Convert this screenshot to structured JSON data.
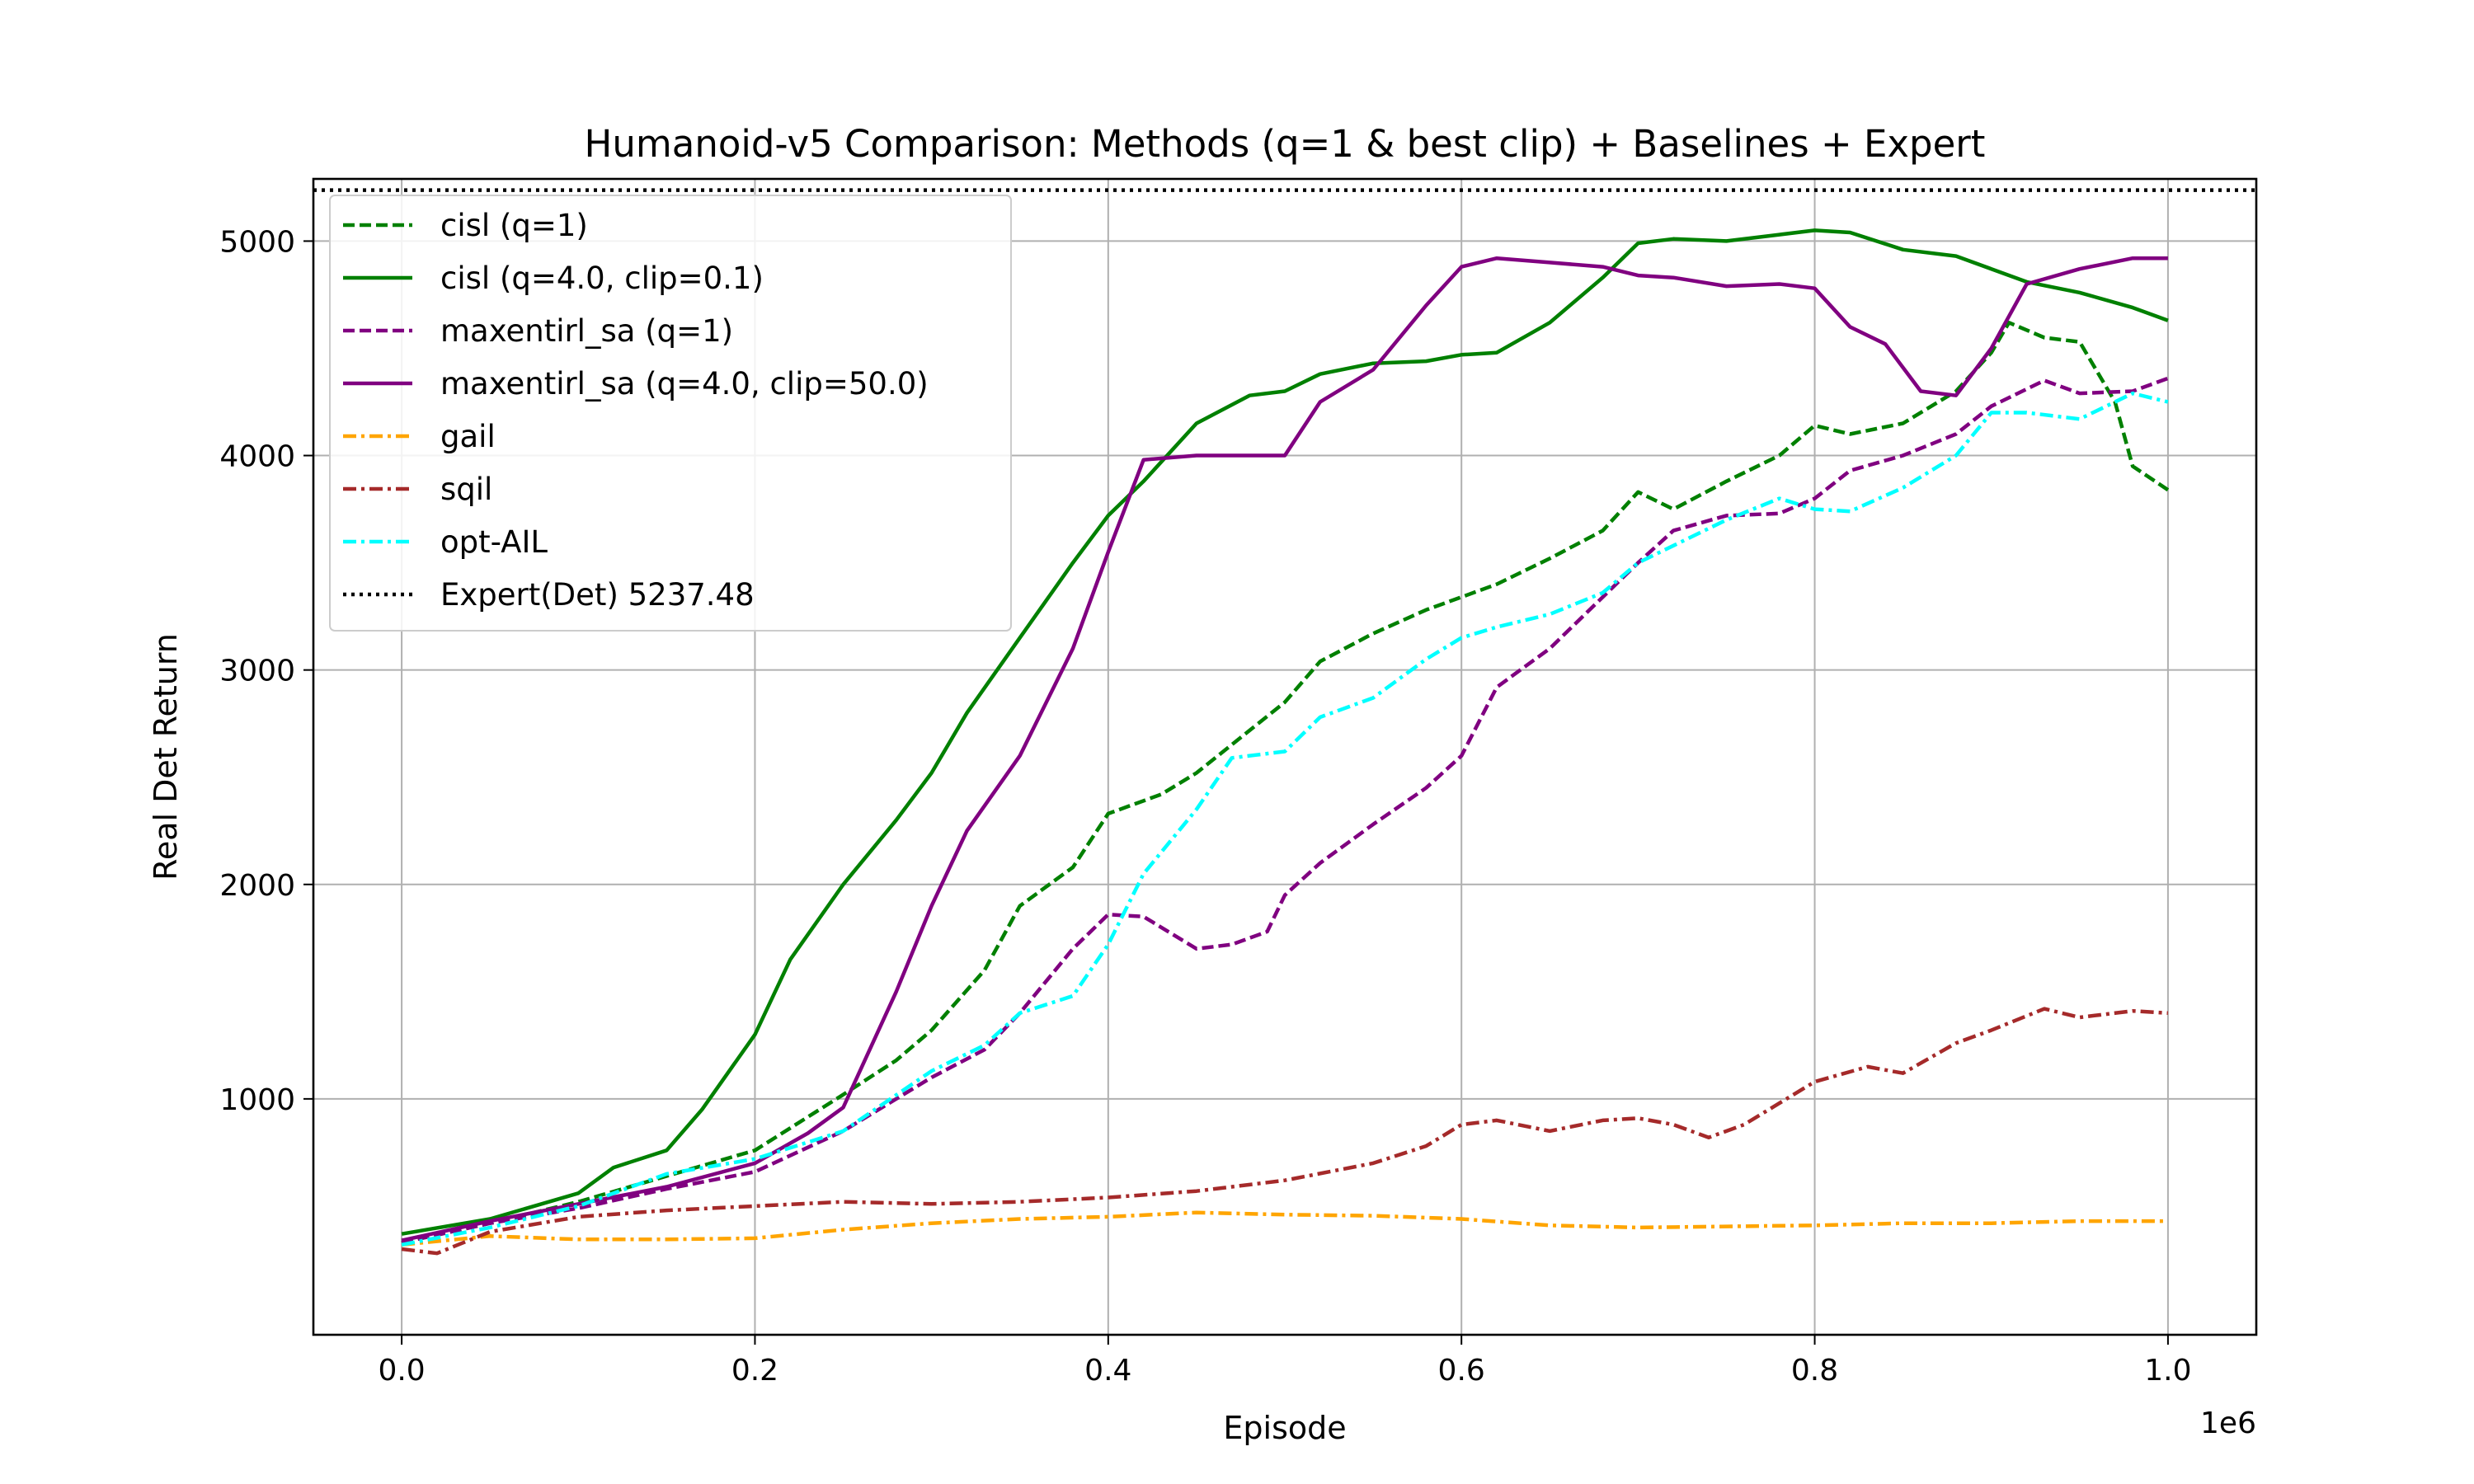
{
  "chart_data": {
    "type": "line",
    "title": "Humanoid-v5 Comparison: Methods (q=1 & best clip) + Baselines + Expert",
    "xlabel": "Episode",
    "ylabel": "Real Det Return",
    "x_offset_label": "1e6",
    "xlim": [
      -0.05,
      1.05
    ],
    "ylim": [
      -100,
      5290
    ],
    "xticks": [
      0.0,
      0.2,
      0.4,
      0.6,
      0.8,
      1.0
    ],
    "xtick_labels": [
      "0.0",
      "0.2",
      "0.4",
      "0.6",
      "0.8",
      "1.0"
    ],
    "yticks": [
      1000,
      2000,
      3000,
      4000,
      5000
    ],
    "ytick_labels": [
      "1000",
      "2000",
      "3000",
      "4000",
      "5000"
    ],
    "grid": true,
    "legend_position": "top-left",
    "reference_line": {
      "name": "Expert(Det) 5237.48",
      "value": 5237.48,
      "color": "#000000",
      "style": "dotted"
    },
    "series": [
      {
        "name": "cisl (q=1)",
        "color": "#008000",
        "style": "dashed",
        "x": [
          0.0,
          0.05,
          0.1,
          0.15,
          0.2,
          0.25,
          0.28,
          0.3,
          0.33,
          0.35,
          0.38,
          0.4,
          0.43,
          0.45,
          0.5,
          0.52,
          0.55,
          0.58,
          0.6,
          0.62,
          0.65,
          0.68,
          0.7,
          0.72,
          0.75,
          0.78,
          0.8,
          0.82,
          0.85,
          0.88,
          0.9,
          0.91,
          0.93,
          0.95,
          0.97,
          0.98,
          1.0
        ],
        "y": [
          330,
          420,
          520,
          640,
          760,
          1020,
          1180,
          1320,
          1600,
          1900,
          2080,
          2330,
          2420,
          2520,
          2850,
          3040,
          3170,
          3280,
          3340,
          3400,
          3520,
          3650,
          3830,
          3750,
          3880,
          4000,
          4140,
          4100,
          4150,
          4300,
          4480,
          4620,
          4550,
          4530,
          4250,
          3950,
          3840
        ]
      },
      {
        "name": "cisl (q=4.0, clip=0.1)",
        "color": "#008000",
        "style": "solid",
        "x": [
          0.0,
          0.05,
          0.1,
          0.12,
          0.15,
          0.17,
          0.2,
          0.22,
          0.25,
          0.28,
          0.3,
          0.32,
          0.35,
          0.38,
          0.4,
          0.42,
          0.45,
          0.48,
          0.5,
          0.52,
          0.55,
          0.58,
          0.6,
          0.62,
          0.65,
          0.68,
          0.7,
          0.72,
          0.75,
          0.78,
          0.8,
          0.82,
          0.85,
          0.88,
          0.9,
          0.92,
          0.95,
          0.98,
          1.0
        ],
        "y": [
          370,
          440,
          560,
          680,
          760,
          950,
          1300,
          1650,
          2000,
          2300,
          2520,
          2800,
          3150,
          3500,
          3720,
          3880,
          4150,
          4280,
          4300,
          4380,
          4430,
          4440,
          4470,
          4480,
          4620,
          4830,
          4990,
          5010,
          5000,
          5030,
          5050,
          5040,
          4960,
          4930,
          4870,
          4810,
          4760,
          4690,
          4630
        ]
      },
      {
        "name": "maxentirl_sa (q=1)",
        "color": "#800080",
        "style": "dashed",
        "x": [
          0.0,
          0.05,
          0.1,
          0.15,
          0.2,
          0.25,
          0.3,
          0.33,
          0.35,
          0.38,
          0.4,
          0.42,
          0.45,
          0.47,
          0.49,
          0.5,
          0.52,
          0.55,
          0.58,
          0.6,
          0.62,
          0.65,
          0.68,
          0.7,
          0.72,
          0.75,
          0.78,
          0.8,
          0.82,
          0.85,
          0.88,
          0.9,
          0.92,
          0.93,
          0.95,
          0.98,
          1.0
        ],
        "y": [
          330,
          420,
          490,
          580,
          660,
          850,
          1100,
          1230,
          1400,
          1700,
          1860,
          1850,
          1700,
          1720,
          1780,
          1950,
          2100,
          2280,
          2450,
          2600,
          2920,
          3100,
          3340,
          3500,
          3650,
          3720,
          3730,
          3800,
          3930,
          4000,
          4100,
          4230,
          4310,
          4350,
          4290,
          4300,
          4360
        ]
      },
      {
        "name": "maxentirl_sa (q=4.0, clip=50.0)",
        "color": "#800080",
        "style": "solid",
        "x": [
          0.0,
          0.05,
          0.1,
          0.15,
          0.2,
          0.23,
          0.25,
          0.28,
          0.3,
          0.32,
          0.35,
          0.38,
          0.4,
          0.42,
          0.45,
          0.48,
          0.5,
          0.52,
          0.55,
          0.58,
          0.6,
          0.62,
          0.65,
          0.68,
          0.7,
          0.72,
          0.75,
          0.78,
          0.8,
          0.82,
          0.84,
          0.86,
          0.88,
          0.9,
          0.92,
          0.95,
          0.98,
          1.0
        ],
        "y": [
          340,
          430,
          510,
          590,
          700,
          840,
          960,
          1500,
          1900,
          2250,
          2600,
          3100,
          3550,
          3980,
          4000,
          4000,
          4000,
          4250,
          4400,
          4700,
          4880,
          4920,
          4900,
          4880,
          4840,
          4830,
          4790,
          4800,
          4780,
          4600,
          4520,
          4300,
          4280,
          4500,
          4800,
          4870,
          4920,
          4920
        ]
      },
      {
        "name": "gail",
        "color": "#FFA500",
        "style": "dashdot",
        "x": [
          0.0,
          0.05,
          0.1,
          0.15,
          0.2,
          0.25,
          0.3,
          0.35,
          0.4,
          0.45,
          0.5,
          0.55,
          0.6,
          0.65,
          0.7,
          0.75,
          0.8,
          0.85,
          0.9,
          0.95,
          1.0
        ],
        "y": [
          320,
          360,
          345,
          345,
          350,
          390,
          420,
          440,
          450,
          470,
          460,
          455,
          440,
          410,
          400,
          405,
          410,
          420,
          420,
          430,
          430
        ]
      },
      {
        "name": "sqil",
        "color": "#A52A2A",
        "style": "dashdot",
        "x": [
          0.0,
          0.02,
          0.05,
          0.1,
          0.15,
          0.2,
          0.25,
          0.3,
          0.35,
          0.4,
          0.45,
          0.5,
          0.55,
          0.58,
          0.6,
          0.62,
          0.65,
          0.68,
          0.7,
          0.72,
          0.74,
          0.76,
          0.78,
          0.8,
          0.83,
          0.85,
          0.88,
          0.9,
          0.93,
          0.95,
          0.98,
          1.0
        ],
        "y": [
          300,
          280,
          380,
          450,
          480,
          500,
          520,
          510,
          520,
          540,
          570,
          620,
          700,
          780,
          880,
          900,
          850,
          900,
          910,
          880,
          820,
          880,
          980,
          1080,
          1150,
          1120,
          1260,
          1320,
          1420,
          1380,
          1410,
          1400
        ]
      },
      {
        "name": "opt-AIL",
        "color": "#00FFFF",
        "style": "dashdot",
        "x": [
          0.0,
          0.05,
          0.1,
          0.15,
          0.2,
          0.25,
          0.3,
          0.33,
          0.35,
          0.38,
          0.4,
          0.42,
          0.45,
          0.47,
          0.5,
          0.52,
          0.55,
          0.58,
          0.6,
          0.62,
          0.65,
          0.68,
          0.7,
          0.72,
          0.75,
          0.78,
          0.8,
          0.82,
          0.85,
          0.88,
          0.9,
          0.92,
          0.95,
          0.98,
          1.0
        ],
        "y": [
          320,
          400,
          500,
          650,
          720,
          850,
          1130,
          1250,
          1400,
          1480,
          1720,
          2050,
          2350,
          2590,
          2620,
          2780,
          2870,
          3050,
          3150,
          3200,
          3260,
          3360,
          3500,
          3580,
          3700,
          3800,
          3750,
          3740,
          3850,
          4000,
          4200,
          4200,
          4170,
          4290,
          4250
        ]
      }
    ]
  }
}
